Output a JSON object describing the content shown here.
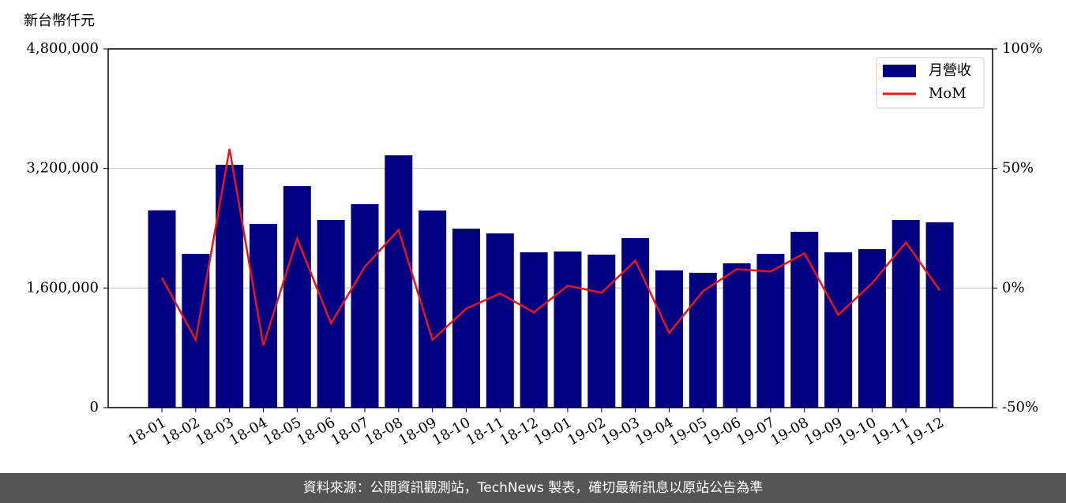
{
  "chart_data": {
    "type": "bar-line",
    "y_axis_label": "新台幣仟元",
    "categories": [
      "18-01",
      "18-02",
      "18-03",
      "18-04",
      "18-05",
      "18-06",
      "18-07",
      "18-08",
      "18-09",
      "18-10",
      "18-11",
      "18-12",
      "19-01",
      "19-02",
      "19-03",
      "19-04",
      "19-05",
      "19-06",
      "19-07",
      "19-08",
      "19-09",
      "19-10",
      "19-11",
      "19-12"
    ],
    "series": [
      {
        "name": "月營收",
        "color": "#000080",
        "type": "bar",
        "values": [
          2640000,
          2057000,
          3249000,
          2458000,
          2964000,
          2511000,
          2722000,
          3376000,
          2637000,
          2395000,
          2331000,
          2078000,
          2089000,
          2047000,
          2268000,
          1836000,
          1804000,
          1931000,
          2057000,
          2353000,
          2078000,
          2121000,
          2511000,
          2479000
        ]
      },
      {
        "name": "MoM",
        "color": "#e8141c",
        "type": "line",
        "axis": "y2",
        "values": [
          4.3,
          -21.7,
          58.2,
          -24,
          20.7,
          -14.8,
          8.9,
          24.3,
          -21.7,
          -8.6,
          -2.3,
          -10.2,
          1,
          -2,
          11.5,
          -18.8,
          -1.3,
          7.9,
          6.9,
          14.5,
          -11.2,
          2,
          19.1,
          -1
        ]
      }
    ],
    "ylim": [
      0,
      4800000
    ],
    "yticks": [
      0,
      {
        "value": 1600000,
        "label": "1,600,000"
      },
      {
        "value": 3200000,
        "label": "3,200,000"
      },
      {
        "value": 4800000,
        "label": "4,800,000"
      }
    ],
    "y2lim": [
      -50,
      100
    ],
    "y2ticks": [
      {
        "value": -50,
        "label": "-50%"
      },
      {
        "value": 0,
        "label": "0%"
      },
      {
        "value": 50,
        "label": "50%"
      },
      {
        "value": 100,
        "label": "100%"
      }
    ],
    "grid": true,
    "legend": "upper right"
  },
  "footer": "資料來源：公開資訊觀測站，TechNews 製表，確切最新訊息以原站公告為準"
}
